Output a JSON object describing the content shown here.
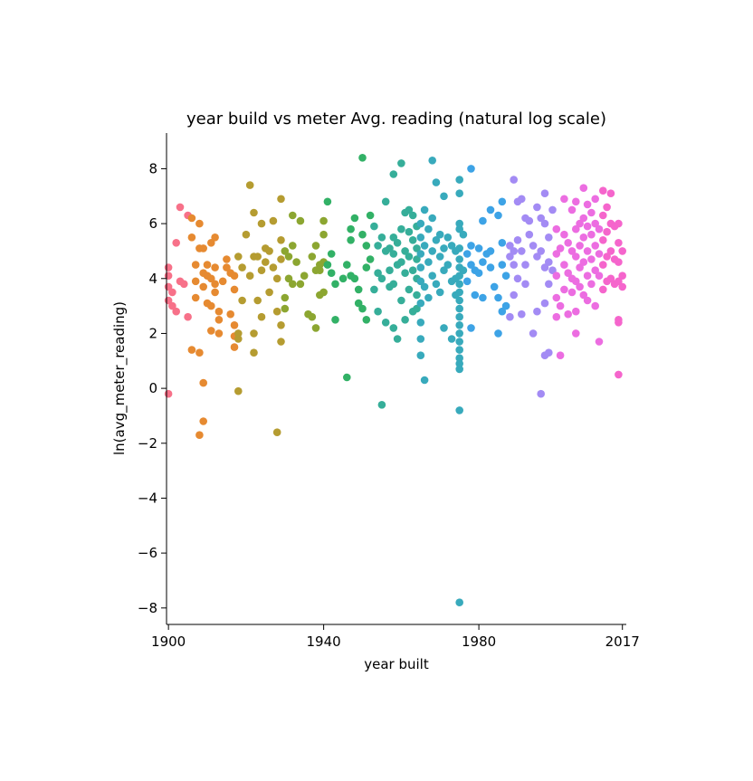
{
  "chart_data": {
    "type": "scatter",
    "title": "year build vs meter Avg. reading (natural log scale)",
    "xlabel": "year built",
    "ylabel": "ln(avg_meter_reading)",
    "xlim": [
      1899.5,
      2018
    ],
    "ylim": [
      -8.6,
      9.3
    ],
    "x_ticks": [
      1900,
      1940,
      1980,
      2017
    ],
    "y_ticks": [
      -8,
      -6,
      -4,
      -2,
      0,
      2,
      4,
      6,
      8
    ],
    "grid": false,
    "legend": "none",
    "hue": "year built (categorical, hue cycles with year)",
    "palette": [
      "#f77189",
      "#e68a31",
      "#b59c31",
      "#8ca631",
      "#32b166",
      "#36ae99",
      "#38aabc",
      "#3da3e6",
      "#a38bf4",
      "#ec6de1",
      "#f565cc"
    ],
    "points": [
      [
        1900,
        4.4
      ],
      [
        1900,
        4.1
      ],
      [
        1900,
        3.7
      ],
      [
        1900,
        3.2
      ],
      [
        1900,
        -0.2
      ],
      [
        1901,
        3.5
      ],
      [
        1901,
        3.0
      ],
      [
        1902,
        5.3
      ],
      [
        1902,
        2.8
      ],
      [
        1903,
        6.6
      ],
      [
        1903,
        3.9
      ],
      [
        1904,
        3.8
      ],
      [
        1905,
        2.6
      ],
      [
        1905,
        6.3
      ],
      [
        1906,
        6.2
      ],
      [
        1906,
        5.5
      ],
      [
        1906,
        1.4
      ],
      [
        1907,
        3.9
      ],
      [
        1907,
        3.3
      ],
      [
        1907,
        4.5
      ],
      [
        1908,
        6.0
      ],
      [
        1908,
        5.1
      ],
      [
        1908,
        1.3
      ],
      [
        1908,
        -1.7
      ],
      [
        1909,
        5.1
      ],
      [
        1909,
        0.2
      ],
      [
        1909,
        -1.2
      ],
      [
        1909,
        4.2
      ],
      [
        1909,
        3.7
      ],
      [
        1910,
        4.1
      ],
      [
        1910,
        4.5
      ],
      [
        1910,
        3.1
      ],
      [
        1911,
        4.0
      ],
      [
        1911,
        3.0
      ],
      [
        1911,
        2.1
      ],
      [
        1911,
        5.3
      ],
      [
        1912,
        3.8
      ],
      [
        1912,
        3.5
      ],
      [
        1912,
        5.5
      ],
      [
        1912,
        4.4
      ],
      [
        1913,
        2.8
      ],
      [
        1913,
        2.0
      ],
      [
        1913,
        2.5
      ],
      [
        1914,
        3.9
      ],
      [
        1915,
        4.7
      ],
      [
        1915,
        4.4
      ],
      [
        1916,
        4.2
      ],
      [
        1916,
        2.7
      ],
      [
        1917,
        1.9
      ],
      [
        1917,
        1.5
      ],
      [
        1917,
        2.3
      ],
      [
        1917,
        3.6
      ],
      [
        1917,
        4.1
      ],
      [
        1918,
        1.8
      ],
      [
        1918,
        2.0
      ],
      [
        1918,
        -0.1
      ],
      [
        1918,
        4.8
      ],
      [
        1919,
        3.2
      ],
      [
        1919,
        4.4
      ],
      [
        1920,
        5.6
      ],
      [
        1921,
        7.4
      ],
      [
        1921,
        4.1
      ],
      [
        1922,
        6.4
      ],
      [
        1922,
        4.8
      ],
      [
        1922,
        2.0
      ],
      [
        1922,
        1.3
      ],
      [
        1923,
        4.8
      ],
      [
        1923,
        3.2
      ],
      [
        1924,
        6.0
      ],
      [
        1924,
        4.3
      ],
      [
        1924,
        2.6
      ],
      [
        1925,
        5.1
      ],
      [
        1925,
        4.6
      ],
      [
        1926,
        5.0
      ],
      [
        1926,
        3.5
      ],
      [
        1927,
        6.1
      ],
      [
        1927,
        4.4
      ],
      [
        1928,
        4.0
      ],
      [
        1928,
        2.8
      ],
      [
        1928,
        -1.6
      ],
      [
        1929,
        6.9
      ],
      [
        1929,
        5.4
      ],
      [
        1929,
        4.7
      ],
      [
        1929,
        2.3
      ],
      [
        1929,
        1.7
      ],
      [
        1930,
        5.0
      ],
      [
        1930,
        3.3
      ],
      [
        1930,
        2.9
      ],
      [
        1931,
        4.8
      ],
      [
        1931,
        4.0
      ],
      [
        1932,
        6.3
      ],
      [
        1932,
        5.2
      ],
      [
        1932,
        3.8
      ],
      [
        1933,
        4.6
      ],
      [
        1934,
        6.1
      ],
      [
        1934,
        3.8
      ],
      [
        1935,
        4.1
      ],
      [
        1936,
        2.7
      ],
      [
        1937,
        2.6
      ],
      [
        1937,
        4.8
      ],
      [
        1938,
        4.3
      ],
      [
        1938,
        5.2
      ],
      [
        1938,
        2.2
      ],
      [
        1939,
        4.5
      ],
      [
        1939,
        4.3
      ],
      [
        1939,
        3.4
      ],
      [
        1940,
        6.1
      ],
      [
        1940,
        5.6
      ],
      [
        1940,
        4.6
      ],
      [
        1940,
        3.5
      ],
      [
        1941,
        6.8
      ],
      [
        1941,
        4.5
      ],
      [
        1942,
        4.9
      ],
      [
        1942,
        4.2
      ],
      [
        1943,
        3.8
      ],
      [
        1943,
        2.5
      ],
      [
        1945,
        4.0
      ],
      [
        1946,
        4.5
      ],
      [
        1946,
        0.4
      ],
      [
        1947,
        5.4
      ],
      [
        1947,
        4.1
      ],
      [
        1947,
        5.8
      ],
      [
        1948,
        6.2
      ],
      [
        1948,
        4.0
      ],
      [
        1949,
        3.6
      ],
      [
        1949,
        3.1
      ],
      [
        1950,
        8.4
      ],
      [
        1950,
        5.6
      ],
      [
        1950,
        2.9
      ],
      [
        1951,
        5.2
      ],
      [
        1951,
        4.4
      ],
      [
        1951,
        2.5
      ],
      [
        1952,
        6.3
      ],
      [
        1952,
        4.7
      ],
      [
        1953,
        5.9
      ],
      [
        1953,
        3.6
      ],
      [
        1954,
        5.2
      ],
      [
        1954,
        4.2
      ],
      [
        1954,
        2.8
      ],
      [
        1955,
        5.5
      ],
      [
        1955,
        4.0
      ],
      [
        1955,
        -0.6
      ],
      [
        1956,
        6.8
      ],
      [
        1956,
        5.0
      ],
      [
        1956,
        2.4
      ],
      [
        1957,
        5.1
      ],
      [
        1957,
        4.3
      ],
      [
        1957,
        3.7
      ],
      [
        1958,
        7.8
      ],
      [
        1958,
        5.5
      ],
      [
        1958,
        4.9
      ],
      [
        1958,
        3.8
      ],
      [
        1958,
        2.2
      ],
      [
        1959,
        5.3
      ],
      [
        1959,
        4.5
      ],
      [
        1959,
        1.8
      ],
      [
        1960,
        8.2
      ],
      [
        1960,
        5.8
      ],
      [
        1960,
        4.6
      ],
      [
        1960,
        3.2
      ],
      [
        1961,
        6.4
      ],
      [
        1961,
        5.0
      ],
      [
        1961,
        4.2
      ],
      [
        1961,
        2.5
      ],
      [
        1962,
        6.5
      ],
      [
        1962,
        5.7
      ],
      [
        1962,
        4.8
      ],
      [
        1962,
        3.6
      ],
      [
        1963,
        6.3
      ],
      [
        1963,
        5.4
      ],
      [
        1963,
        4.3
      ],
      [
        1963,
        2.8
      ],
      [
        1964,
        5.9
      ],
      [
        1964,
        5.1
      ],
      [
        1964,
        4.7
      ],
      [
        1964,
        4.0
      ],
      [
        1964,
        3.4
      ],
      [
        1964,
        2.9
      ],
      [
        1965,
        6.0
      ],
      [
        1965,
        5.5
      ],
      [
        1965,
        4.9
      ],
      [
        1965,
        4.4
      ],
      [
        1965,
        3.9
      ],
      [
        1965,
        3.1
      ],
      [
        1965,
        2.4
      ],
      [
        1965,
        1.8
      ],
      [
        1965,
        1.2
      ],
      [
        1966,
        6.5
      ],
      [
        1966,
        5.2
      ],
      [
        1966,
        3.7
      ],
      [
        1966,
        0.3
      ],
      [
        1967,
        5.8
      ],
      [
        1967,
        4.6
      ],
      [
        1967,
        3.3
      ],
      [
        1968,
        8.3
      ],
      [
        1968,
        6.2
      ],
      [
        1968,
        5.0
      ],
      [
        1968,
        4.1
      ],
      [
        1969,
        7.5
      ],
      [
        1969,
        5.4
      ],
      [
        1969,
        3.8
      ],
      [
        1970,
        5.6
      ],
      [
        1970,
        4.8
      ],
      [
        1970,
        3.5
      ],
      [
        1971,
        7.0
      ],
      [
        1971,
        5.1
      ],
      [
        1971,
        4.3
      ],
      [
        1971,
        2.2
      ],
      [
        1972,
        5.5
      ],
      [
        1972,
        4.5
      ],
      [
        1973,
        5.2
      ],
      [
        1973,
        3.9
      ],
      [
        1973,
        1.8
      ],
      [
        1974,
        5.0
      ],
      [
        1974,
        4.0
      ],
      [
        1974,
        3.4
      ],
      [
        1975,
        7.6
      ],
      [
        1975,
        7.1
      ],
      [
        1975,
        6.0
      ],
      [
        1975,
        5.8
      ],
      [
        1975,
        5.1
      ],
      [
        1975,
        4.7
      ],
      [
        1975,
        4.4
      ],
      [
        1975,
        4.1
      ],
      [
        1975,
        3.8
      ],
      [
        1975,
        3.5
      ],
      [
        1975,
        3.2
      ],
      [
        1975,
        2.9
      ],
      [
        1975,
        2.6
      ],
      [
        1975,
        2.3
      ],
      [
        1975,
        2.0
      ],
      [
        1975,
        1.7
      ],
      [
        1975,
        1.4
      ],
      [
        1975,
        1.1
      ],
      [
        1975,
        0.9
      ],
      [
        1975,
        0.7
      ],
      [
        1975,
        -0.8
      ],
      [
        1975,
        -7.8
      ],
      [
        1976,
        5.6
      ],
      [
        1976,
        4.3
      ],
      [
        1977,
        4.9
      ],
      [
        1977,
        3.9
      ],
      [
        1978,
        8.0
      ],
      [
        1978,
        5.2
      ],
      [
        1978,
        4.5
      ],
      [
        1978,
        2.2
      ],
      [
        1979,
        4.3
      ],
      [
        1979,
        3.4
      ],
      [
        1980,
        5.1
      ],
      [
        1980,
        4.2
      ],
      [
        1981,
        6.1
      ],
      [
        1981,
        4.6
      ],
      [
        1981,
        3.3
      ],
      [
        1982,
        4.9
      ],
      [
        1983,
        6.5
      ],
      [
        1983,
        5.0
      ],
      [
        1983,
        4.4
      ],
      [
        1984,
        3.7
      ],
      [
        1985,
        6.3
      ],
      [
        1985,
        3.3
      ],
      [
        1985,
        2.0
      ],
      [
        1986,
        6.8
      ],
      [
        1986,
        5.3
      ],
      [
        1986,
        4.5
      ],
      [
        1986,
        2.8
      ],
      [
        1987,
        4.1
      ],
      [
        1987,
        3.0
      ],
      [
        1988,
        5.2
      ],
      [
        1988,
        4.8
      ],
      [
        1988,
        2.6
      ],
      [
        1989,
        7.6
      ],
      [
        1989,
        5.0
      ],
      [
        1989,
        4.5
      ],
      [
        1989,
        3.4
      ],
      [
        1990,
        6.8
      ],
      [
        1990,
        5.4
      ],
      [
        1990,
        4.0
      ],
      [
        1991,
        6.9
      ],
      [
        1991,
        5.0
      ],
      [
        1991,
        2.7
      ],
      [
        1992,
        6.2
      ],
      [
        1992,
        4.5
      ],
      [
        1992,
        3.8
      ],
      [
        1993,
        6.1
      ],
      [
        1993,
        5.6
      ],
      [
        1994,
        5.2
      ],
      [
        1994,
        2.0
      ],
      [
        1995,
        6.6
      ],
      [
        1995,
        4.8
      ],
      [
        1995,
        2.8
      ],
      [
        1996,
        6.2
      ],
      [
        1996,
        5.0
      ],
      [
        1996,
        -0.2
      ],
      [
        1997,
        7.1
      ],
      [
        1997,
        6.0
      ],
      [
        1997,
        4.4
      ],
      [
        1997,
        3.1
      ],
      [
        1997,
        1.2
      ],
      [
        1998,
        5.5
      ],
      [
        1998,
        4.6
      ],
      [
        1998,
        3.8
      ],
      [
        1998,
        1.3
      ],
      [
        1999,
        6.5
      ],
      [
        1999,
        4.3
      ],
      [
        2000,
        5.8
      ],
      [
        2000,
        4.9
      ],
      [
        2000,
        4.1
      ],
      [
        2000,
        3.3
      ],
      [
        2000,
        2.6
      ],
      [
        2001,
        5.1
      ],
      [
        2001,
        3.0
      ],
      [
        2001,
        1.2
      ],
      [
        2002,
        6.9
      ],
      [
        2002,
        5.6
      ],
      [
        2002,
        4.5
      ],
      [
        2002,
        3.6
      ],
      [
        2003,
        5.3
      ],
      [
        2003,
        4.2
      ],
      [
        2003,
        2.7
      ],
      [
        2004,
        6.5
      ],
      [
        2004,
        5.0
      ],
      [
        2004,
        4.0
      ],
      [
        2004,
        3.5
      ],
      [
        2005,
        6.8
      ],
      [
        2005,
        5.8
      ],
      [
        2005,
        4.8
      ],
      [
        2005,
        3.9
      ],
      [
        2005,
        2.8
      ],
      [
        2005,
        2.0
      ],
      [
        2006,
        6.0
      ],
      [
        2006,
        5.2
      ],
      [
        2006,
        4.4
      ],
      [
        2006,
        3.7
      ],
      [
        2007,
        7.3
      ],
      [
        2007,
        6.2
      ],
      [
        2007,
        5.5
      ],
      [
        2007,
        4.6
      ],
      [
        2007,
        3.4
      ],
      [
        2008,
        6.7
      ],
      [
        2008,
        5.9
      ],
      [
        2008,
        5.0
      ],
      [
        2008,
        4.1
      ],
      [
        2008,
        3.2
      ],
      [
        2009,
        6.4
      ],
      [
        2009,
        5.6
      ],
      [
        2009,
        4.7
      ],
      [
        2009,
        3.8
      ],
      [
        2010,
        6.9
      ],
      [
        2010,
        6.0
      ],
      [
        2010,
        5.2
      ],
      [
        2010,
        4.3
      ],
      [
        2010,
        3.0
      ],
      [
        2011,
        5.8
      ],
      [
        2011,
        4.9
      ],
      [
        2011,
        4.1
      ],
      [
        2011,
        1.7
      ],
      [
        2012,
        7.2
      ],
      [
        2012,
        6.3
      ],
      [
        2012,
        5.4
      ],
      [
        2012,
        4.5
      ],
      [
        2012,
        3.6
      ],
      [
        2013,
        6.6
      ],
      [
        2013,
        5.7
      ],
      [
        2013,
        4.8
      ],
      [
        2013,
        3.9
      ],
      [
        2014,
        7.1
      ],
      [
        2014,
        6.0
      ],
      [
        2014,
        5.0
      ],
      [
        2014,
        4.0
      ],
      [
        2015,
        5.9
      ],
      [
        2015,
        4.7
      ],
      [
        2015,
        3.8
      ],
      [
        2016,
        6.0
      ],
      [
        2016,
        5.3
      ],
      [
        2016,
        4.6
      ],
      [
        2016,
        3.9
      ],
      [
        2016,
        2.5
      ],
      [
        2016,
        2.4
      ],
      [
        2016,
        0.5
      ],
      [
        2017,
        5.0
      ],
      [
        2017,
        4.1
      ],
      [
        2017,
        3.7
      ]
    ]
  }
}
